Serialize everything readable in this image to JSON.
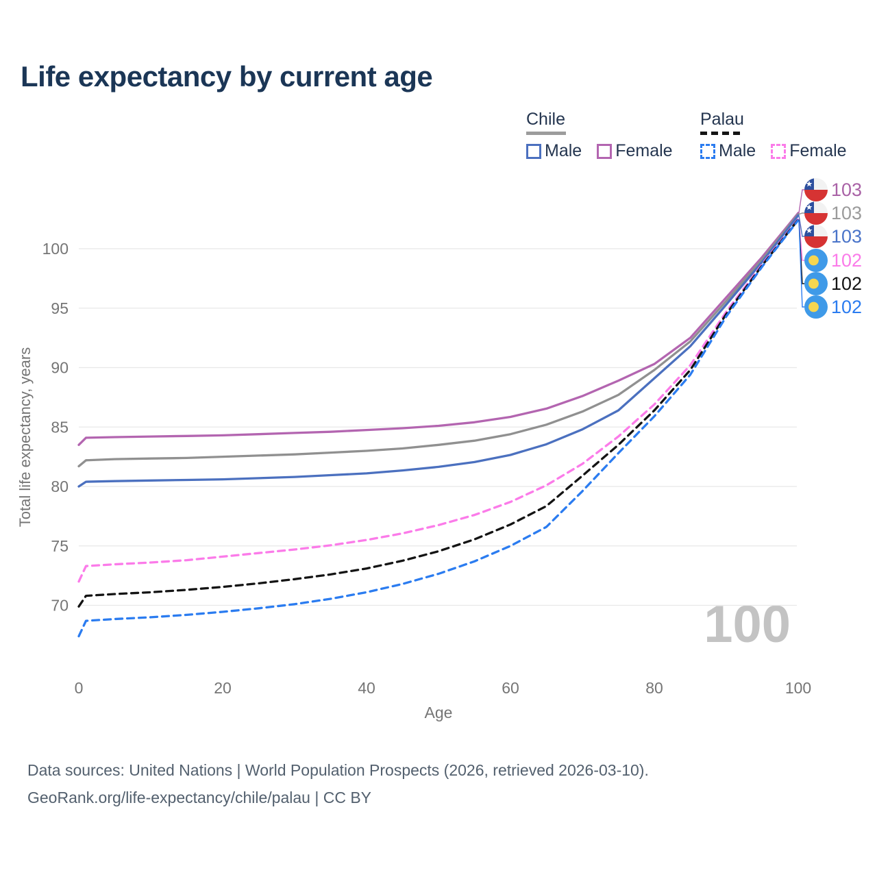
{
  "title": "Life expectancy by current age",
  "legend": {
    "groups": [
      {
        "country": "Chile",
        "line_style": "solid",
        "swatch_color": "#9c9c9c",
        "items": [
          {
            "label": "Male",
            "color": "#4b70bf"
          },
          {
            "label": "Female",
            "color": "#b365b0"
          }
        ]
      },
      {
        "country": "Palau",
        "line_style": "dashed",
        "swatch_color": "#141414",
        "items": [
          {
            "label": "Male",
            "color": "#2b7cf0"
          },
          {
            "label": "Female",
            "color": "#fb7be9"
          }
        ]
      }
    ]
  },
  "chart_data": {
    "type": "line",
    "title": "Life expectancy by current age",
    "xlabel": "Age",
    "ylabel": "Total life expectancy, years",
    "xticks": [
      0,
      20,
      40,
      60,
      80,
      100
    ],
    "yticks": [
      70,
      75,
      80,
      85,
      90,
      95,
      100
    ],
    "xlim": [
      0,
      100
    ],
    "ylim": [
      66,
      104
    ],
    "grid": "horizontal",
    "legend_position": "top-right",
    "ages": [
      0,
      1,
      5,
      10,
      15,
      20,
      25,
      30,
      35,
      40,
      45,
      50,
      55,
      60,
      65,
      70,
      75,
      80,
      85,
      90,
      95,
      100
    ],
    "series": [
      {
        "id": "chile-female",
        "country": "Chile",
        "sex": "Female",
        "style": "solid",
        "color": "#b365b0",
        "values": [
          83.5,
          84.1,
          84.15,
          84.2,
          84.25,
          84.3,
          84.4,
          84.5,
          84.6,
          84.75,
          84.9,
          85.1,
          85.4,
          85.85,
          86.55,
          87.6,
          88.9,
          90.3,
          92.5,
          95.9,
          99.3,
          103.0
        ]
      },
      {
        "id": "chile-both",
        "country": "Chile",
        "sex": "Both sexes",
        "style": "solid",
        "color": "#909090",
        "values": [
          81.7,
          82.2,
          82.3,
          82.35,
          82.4,
          82.5,
          82.6,
          82.7,
          82.85,
          83.0,
          83.2,
          83.5,
          83.85,
          84.4,
          85.2,
          86.3,
          87.7,
          89.8,
          92.2,
          95.6,
          99.1,
          102.9
        ]
      },
      {
        "id": "chile-male",
        "country": "Chile",
        "sex": "Male",
        "style": "solid",
        "color": "#4b70bf",
        "values": [
          80.0,
          80.4,
          80.45,
          80.5,
          80.55,
          80.6,
          80.7,
          80.8,
          80.95,
          81.1,
          81.35,
          81.65,
          82.05,
          82.65,
          83.55,
          84.8,
          86.4,
          89.1,
          91.8,
          95.3,
          98.9,
          102.8
        ]
      },
      {
        "id": "palau-female",
        "country": "Palau",
        "sex": "Female",
        "style": "dashed",
        "color": "#fb7be9",
        "values": [
          72.0,
          73.3,
          73.45,
          73.6,
          73.8,
          74.1,
          74.4,
          74.7,
          75.05,
          75.5,
          76.05,
          76.75,
          77.6,
          78.7,
          80.1,
          81.9,
          84.2,
          86.9,
          90.2,
          94.7,
          98.7,
          102.5
        ]
      },
      {
        "id": "palau-both",
        "country": "Palau",
        "sex": "Both sexes",
        "style": "dashed",
        "color": "#141414",
        "values": [
          69.9,
          70.8,
          70.95,
          71.1,
          71.3,
          71.55,
          71.85,
          72.2,
          72.6,
          73.1,
          73.75,
          74.55,
          75.55,
          76.8,
          78.35,
          80.9,
          83.5,
          86.4,
          89.8,
          94.5,
          98.6,
          102.45
        ]
      },
      {
        "id": "palau-male",
        "country": "Palau",
        "sex": "Male",
        "style": "dashed",
        "color": "#2b7cf0",
        "values": [
          67.4,
          68.7,
          68.85,
          69.0,
          69.2,
          69.45,
          69.75,
          70.1,
          70.55,
          71.1,
          71.8,
          72.65,
          73.7,
          75.0,
          76.6,
          79.6,
          82.8,
          85.9,
          89.4,
          94.3,
          98.5,
          102.4
        ]
      }
    ],
    "end_labels": [
      {
        "series": "chile-female",
        "flag": "chile",
        "value": "103",
        "color": "#a962a6"
      },
      {
        "series": "chile-both",
        "flag": "chile",
        "value": "103",
        "color": "#9b9b9b"
      },
      {
        "series": "chile-male",
        "flag": "chile",
        "value": "103",
        "color": "#4a74c9"
      },
      {
        "series": "palau-female",
        "flag": "palau",
        "value": "102",
        "color": "#fb7be9"
      },
      {
        "series": "palau-both",
        "flag": "palau",
        "value": "102",
        "color": "#141414"
      },
      {
        "series": "palau-male",
        "flag": "palau",
        "value": "102",
        "color": "#2b7cf0"
      }
    ],
    "watermark": "100"
  },
  "footer": {
    "line1": "Data sources: United Nations | World Population Prospects (2026, retrieved 2026-03-10).",
    "line2": "GeoRank.org/life-expectancy/chile/palau | CC BY"
  },
  "colors": {
    "title": "#1b3656",
    "axis_text": "#757575",
    "grid": "#e8e8e8",
    "legend_text": "#24354f",
    "footer_text": "#53606e",
    "watermark": "#c3c3c3"
  }
}
